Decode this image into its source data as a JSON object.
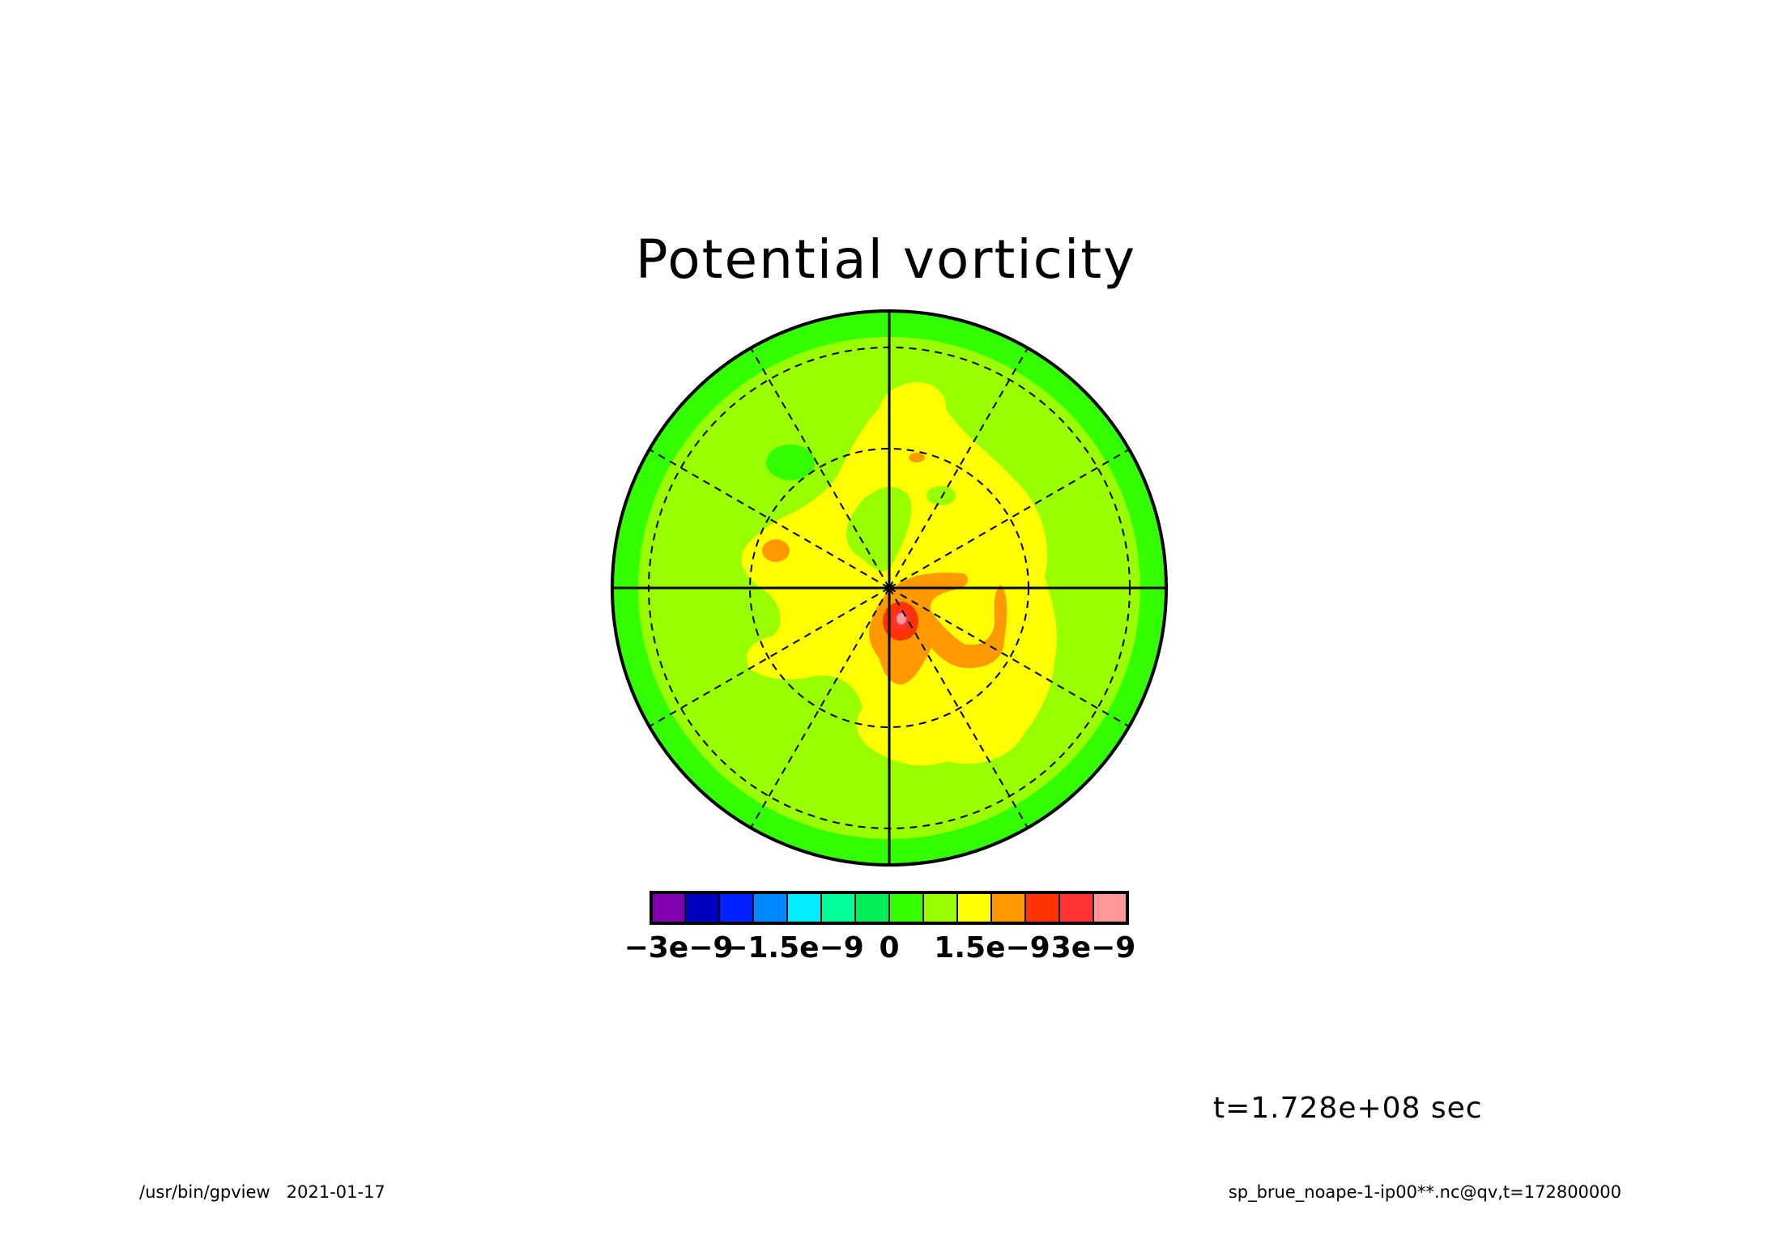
{
  "title": "Potential vorticity",
  "time_label": "t=1.728e+08 sec",
  "footer": {
    "left": "/usr/bin/gpview   2021-01-17",
    "right": "sp_brue_noape-1-ip00**.nc@qv,t=172800000"
  },
  "colors": {
    "outer_band": "#33ff00",
    "light_green": "#99ff00",
    "yellow": "#ffff00",
    "orange": "#ff9900",
    "red": "#ff3300",
    "pink": "#ff9999"
  },
  "chart_data": {
    "type": "heatmap",
    "projection": "polar",
    "title": "Potential vorticity",
    "colorbar": {
      "levels": 14,
      "colors": [
        "#8000b0",
        "#0000c0",
        "#0022ff",
        "#0088ff",
        "#00eeff",
        "#00ff99",
        "#00ee55",
        "#33ff00",
        "#99ff00",
        "#ffff00",
        "#ff9900",
        "#ff3300",
        "#ff3333",
        "#ff9999"
      ],
      "tick_labels": [
        "−3e−9",
        "−1.5e−9",
        "0",
        "1.5e−9",
        "3e−9"
      ],
      "tick_values": [
        -3e-09,
        -1.5e-09,
        0,
        1.5e-09,
        3e-09
      ]
    },
    "meridians_deg": [
      0,
      30,
      60,
      90,
      120,
      150,
      180,
      210,
      240,
      270,
      300,
      330
    ],
    "latitude_circles": 2,
    "grid": true
  }
}
